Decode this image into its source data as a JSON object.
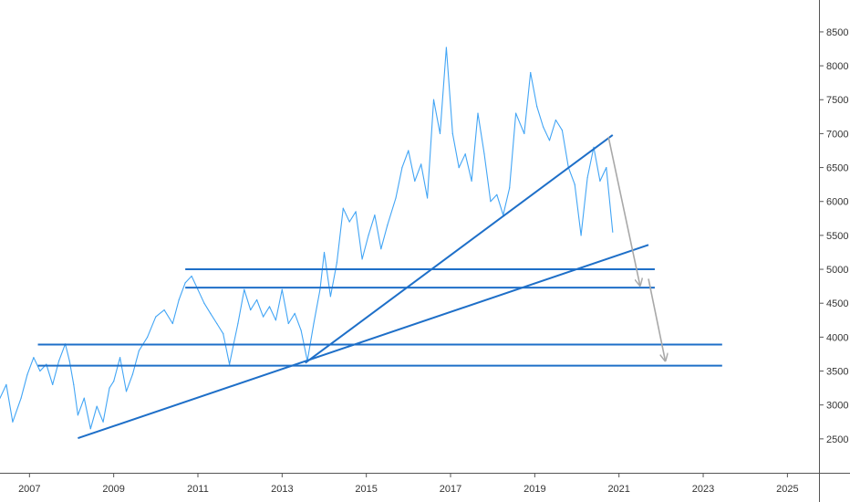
{
  "chart_data": {
    "type": "line",
    "title": "",
    "xlabel": "",
    "ylabel": "",
    "xlim": [
      2006.3,
      2025.75
    ],
    "ylim": [
      2000,
      8970
    ],
    "grid": false,
    "legend": "none",
    "colors": {
      "price_line": "#42a5f5",
      "trendlines": "#1e6fc8",
      "arrows": "#a8a8a8",
      "axis": "#555555"
    },
    "x_ticks": [
      "2007",
      "2009",
      "2011",
      "2013",
      "2015",
      "2017",
      "2019",
      "2021",
      "2023",
      "2025"
    ],
    "y_ticks": [
      "2500",
      "3000",
      "3500",
      "4000",
      "4500",
      "5000",
      "5500",
      "6000",
      "6500",
      "7000",
      "7500",
      "8000",
      "8500"
    ],
    "series": [
      {
        "values": [
          [
            2006.3,
            3100
          ],
          [
            2006.45,
            3300
          ],
          [
            2006.6,
            2750
          ],
          [
            2006.8,
            3100
          ],
          [
            2006.95,
            3450
          ],
          [
            2007.1,
            3700
          ],
          [
            2007.25,
            3500
          ],
          [
            2007.4,
            3600
          ],
          [
            2007.55,
            3300
          ],
          [
            2007.7,
            3650
          ],
          [
            2007.85,
            3900
          ],
          [
            2007.95,
            3650
          ],
          [
            2008.05,
            3300
          ],
          [
            2008.15,
            2850
          ],
          [
            2008.3,
            3100
          ],
          [
            2008.45,
            2650
          ],
          [
            2008.6,
            2980
          ],
          [
            2008.75,
            2750
          ],
          [
            2008.9,
            3250
          ],
          [
            2009.0,
            3350
          ],
          [
            2009.15,
            3700
          ],
          [
            2009.3,
            3200
          ],
          [
            2009.45,
            3450
          ],
          [
            2009.6,
            3800
          ],
          [
            2009.8,
            4000
          ],
          [
            2010.0,
            4300
          ],
          [
            2010.2,
            4400
          ],
          [
            2010.4,
            4200
          ],
          [
            2010.55,
            4550
          ],
          [
            2010.7,
            4800
          ],
          [
            2010.85,
            4900
          ],
          [
            2011.0,
            4700
          ],
          [
            2011.15,
            4500
          ],
          [
            2011.3,
            4350
          ],
          [
            2011.45,
            4200
          ],
          [
            2011.6,
            4050
          ],
          [
            2011.75,
            3600
          ],
          [
            2011.85,
            3900
          ],
          [
            2011.95,
            4200
          ],
          [
            2012.1,
            4700
          ],
          [
            2012.25,
            4400
          ],
          [
            2012.4,
            4550
          ],
          [
            2012.55,
            4300
          ],
          [
            2012.7,
            4450
          ],
          [
            2012.85,
            4250
          ],
          [
            2013.0,
            4700
          ],
          [
            2013.15,
            4200
          ],
          [
            2013.3,
            4350
          ],
          [
            2013.45,
            4100
          ],
          [
            2013.6,
            3650
          ],
          [
            2013.75,
            4200
          ],
          [
            2013.9,
            4700
          ],
          [
            2014.0,
            5250
          ],
          [
            2014.15,
            4600
          ],
          [
            2014.3,
            5100
          ],
          [
            2014.45,
            5900
          ],
          [
            2014.6,
            5700
          ],
          [
            2014.75,
            5850
          ],
          [
            2014.9,
            5150
          ],
          [
            2015.05,
            5500
          ],
          [
            2015.2,
            5800
          ],
          [
            2015.35,
            5300
          ],
          [
            2015.5,
            5650
          ],
          [
            2015.7,
            6050
          ],
          [
            2015.85,
            6500
          ],
          [
            2016.0,
            6750
          ],
          [
            2016.15,
            6300
          ],
          [
            2016.3,
            6550
          ],
          [
            2016.45,
            6050
          ],
          [
            2016.6,
            7500
          ],
          [
            2016.75,
            7000
          ],
          [
            2016.9,
            8270
          ],
          [
            2017.05,
            7000
          ],
          [
            2017.2,
            6500
          ],
          [
            2017.35,
            6700
          ],
          [
            2017.5,
            6300
          ],
          [
            2017.65,
            7300
          ],
          [
            2017.8,
            6700
          ],
          [
            2017.95,
            6000
          ],
          [
            2018.1,
            6100
          ],
          [
            2018.25,
            5800
          ],
          [
            2018.4,
            6200
          ],
          [
            2018.55,
            7300
          ],
          [
            2018.75,
            7000
          ],
          [
            2018.9,
            7900
          ],
          [
            2019.05,
            7400
          ],
          [
            2019.2,
            7100
          ],
          [
            2019.35,
            6900
          ],
          [
            2019.5,
            7200
          ],
          [
            2019.65,
            7050
          ],
          [
            2019.8,
            6500
          ],
          [
            2019.95,
            6250
          ],
          [
            2020.1,
            5500
          ],
          [
            2020.25,
            6350
          ],
          [
            2020.4,
            6800
          ],
          [
            2020.55,
            6300
          ],
          [
            2020.7,
            6500
          ],
          [
            2020.85,
            5550
          ]
        ]
      }
    ],
    "horizontal_levels": [
      {
        "y": 5000,
        "x_start": 2010.7,
        "x_end": 2021.85
      },
      {
        "y": 4730,
        "x_start": 2010.7,
        "x_end": 2021.85
      },
      {
        "y": 3890,
        "x_start": 2007.2,
        "x_end": 2023.45
      },
      {
        "y": 3580,
        "x_start": 2007.2,
        "x_end": 2023.45
      }
    ],
    "trendlines": [
      {
        "x1": 2008.15,
        "y1": 2510,
        "x2": 2021.7,
        "y2": 5360
      },
      {
        "x1": 2013.55,
        "y1": 3620,
        "x2": 2020.85,
        "y2": 6980
      }
    ],
    "arrows": [
      {
        "x1": 2020.75,
        "y1": 6950,
        "x2": 2021.5,
        "y2": 4760
      },
      {
        "x1": 2021.7,
        "y1": 4860,
        "x2": 2022.1,
        "y2": 3650
      }
    ]
  }
}
